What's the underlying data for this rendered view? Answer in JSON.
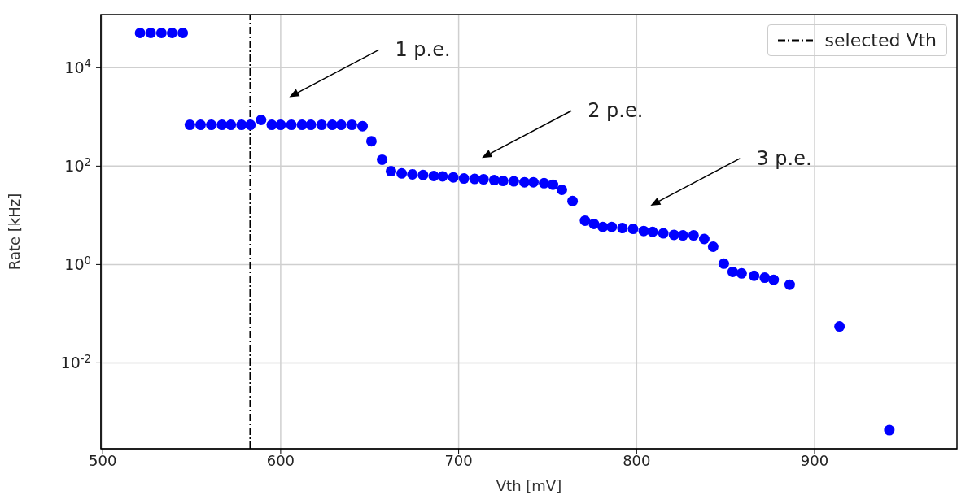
{
  "chart_data": {
    "type": "scatter",
    "xlabel": "Vth [mV]",
    "ylabel": "Rate [kHz]",
    "x": [
      521,
      527,
      533,
      539,
      545,
      549,
      555,
      561,
      567,
      572,
      578,
      583,
      589,
      595,
      600,
      606,
      612,
      617,
      623,
      629,
      634,
      640,
      646,
      651,
      657,
      662,
      668,
      674,
      680,
      686,
      691,
      697,
      703,
      709,
      714,
      720,
      725,
      731,
      737,
      742,
      748,
      753,
      758,
      764,
      771,
      776,
      781,
      786,
      792,
      798,
      804,
      809,
      815,
      821,
      826,
      832,
      838,
      843,
      849,
      854,
      859,
      866,
      872,
      877,
      886,
      914,
      942
    ],
    "series": [
      {
        "color": "#0000ff",
        "values": [
          51000,
          51000,
          51000,
          51000,
          51000,
          690,
          690,
          690,
          690,
          690,
          690,
          690,
          870,
          690,
          690,
          690,
          690,
          690,
          690,
          690,
          690,
          690,
          650,
          320,
          135,
          79,
          71,
          68,
          66,
          63,
          62,
          59,
          56,
          55,
          54,
          52,
          50,
          49,
          47,
          47,
          45,
          42,
          33,
          19.5,
          7.8,
          6.7,
          5.8,
          5.8,
          5.5,
          5.3,
          4.8,
          4.6,
          4.3,
          4.0,
          3.9,
          3.9,
          3.3,
          2.3,
          1.04,
          0.71,
          0.66,
          0.59,
          0.54,
          0.49,
          0.39,
          0.055,
          0.00043
        ]
      }
    ],
    "xlim": [
      499,
      980
    ],
    "xticks": [
      500,
      600,
      700,
      800,
      900
    ],
    "ylim": [
      0.00018,
      120000
    ],
    "log": "y",
    "yticks": [
      {
        "value": 0.01,
        "label": "10$^{-2}$"
      },
      {
        "value": 1,
        "label": "10$^{0}$"
      },
      {
        "value": 100,
        "label": "10$^{2}$"
      },
      {
        "value": 10000,
        "label": "10$^{4}$"
      }
    ],
    "grid": true,
    "marker": "circle",
    "legend": "top right",
    "ref_lines": [
      {
        "axis": "x",
        "value": 583,
        "label": "selected Vth",
        "color": "#000000",
        "line_style": "dashdot"
      }
    ],
    "annotations": [
      "1 p.e.",
      "2 p.e.",
      "3 p.e."
    ]
  }
}
